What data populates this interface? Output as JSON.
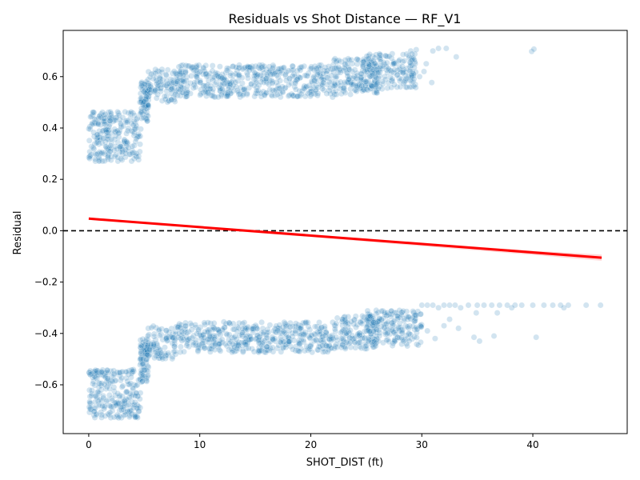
{
  "chart_data": {
    "type": "scatter",
    "title": "Residuals vs Shot Distance — RF_V1",
    "xlabel": "SHOT_DIST (ft)",
    "ylabel": "Residual",
    "xlim": [
      -2.3,
      48.5
    ],
    "ylim": [
      -0.79,
      0.78
    ],
    "xticks": [
      0,
      10,
      20,
      30,
      40
    ],
    "yticks": [
      -0.6,
      -0.4,
      -0.2,
      0.0,
      0.2,
      0.4,
      0.6
    ],
    "xtick_labels": [
      "0",
      "10",
      "20",
      "30",
      "40"
    ],
    "ytick_labels": [
      "−0.6",
      "−0.4",
      "−0.2",
      "0.0",
      "0.2",
      "0.4",
      "0.6"
    ],
    "grid": false,
    "colors": {
      "points": "#1f77b4",
      "trend": "#ff0000",
      "band": "#ff0000",
      "zero_line": "#000000"
    },
    "point_alpha": 0.2,
    "reference_line": {
      "y": 0.0,
      "style": "dashed"
    },
    "trend_line": {
      "x": [
        0,
        46.2
      ],
      "y": [
        0.047,
        -0.105
      ],
      "ci_band": {
        "x": [
          0,
          10,
          20,
          30,
          40,
          46.2
        ],
        "lower": [
          0.042,
          0.009,
          -0.025,
          -0.06,
          -0.094,
          -0.117
        ],
        "upper": [
          0.052,
          0.017,
          -0.015,
          -0.046,
          -0.078,
          -0.093
        ]
      }
    },
    "series": [
      {
        "clusters": [
          {
            "x": [
              0,
              4.7
            ],
            "y": [
              0.27,
              0.465
            ]
          },
          {
            "x": [
              4.6,
              5.4
            ],
            "y": [
              0.42,
              0.58
            ]
          },
          {
            "x": [
              5.2,
              8
            ],
            "y": [
              0.5,
              0.63
            ]
          },
          {
            "x": [
              8,
              22
            ],
            "y": [
              0.52,
              0.645
            ]
          },
          {
            "x": [
              22,
              26
            ],
            "y": [
              0.53,
              0.67
            ]
          },
          {
            "x": [
              24.5,
              29.5
            ],
            "y": [
              0.55,
              0.69
            ]
          },
          {
            "x": [
              0,
              4.7
            ],
            "y": [
              -0.73,
              -0.54
            ]
          },
          {
            "x": [
              4.6,
              5.4
            ],
            "y": [
              -0.6,
              -0.42
            ]
          },
          {
            "x": [
              5.2,
              8
            ],
            "y": [
              -0.5,
              -0.37
            ]
          },
          {
            "x": [
              8,
              22
            ],
            "y": [
              -0.475,
              -0.355
            ]
          },
          {
            "x": [
              22,
              26
            ],
            "y": [
              -0.46,
              -0.33
            ]
          },
          {
            "x": [
              25,
              30
            ],
            "y": [
              -0.45,
              -0.31
            ]
          }
        ],
        "outliers": [
          {
            "x": 29,
            "y": 0.7
          },
          {
            "x": 29.5,
            "y": 0.705
          },
          {
            "x": 30.4,
            "y": 0.65
          },
          {
            "x": 30.9,
            "y": 0.577
          },
          {
            "x": 31.0,
            "y": 0.7
          },
          {
            "x": 31.5,
            "y": 0.71
          },
          {
            "x": 32.2,
            "y": 0.71
          },
          {
            "x": 33.1,
            "y": 0.677
          },
          {
            "x": 39.9,
            "y": 0.698
          },
          {
            "x": 40.1,
            "y": 0.707
          },
          {
            "x": 30.2,
            "y": 0.62
          },
          {
            "x": 29.8,
            "y": 0.6
          },
          {
            "x": 30,
            "y": -0.29
          },
          {
            "x": 30.5,
            "y": -0.29
          },
          {
            "x": 31,
            "y": -0.29
          },
          {
            "x": 31.5,
            "y": -0.3
          },
          {
            "x": 32,
            "y": -0.29
          },
          {
            "x": 32.5,
            "y": -0.29
          },
          {
            "x": 33,
            "y": -0.29
          },
          {
            "x": 33.5,
            "y": -0.3
          },
          {
            "x": 34.2,
            "y": -0.29
          },
          {
            "x": 35,
            "y": -0.29
          },
          {
            "x": 35.6,
            "y": -0.29
          },
          {
            "x": 36.3,
            "y": -0.29
          },
          {
            "x": 37,
            "y": -0.29
          },
          {
            "x": 37.7,
            "y": -0.29
          },
          {
            "x": 38.4,
            "y": -0.29
          },
          {
            "x": 39,
            "y": -0.29
          },
          {
            "x": 40,
            "y": -0.29
          },
          {
            "x": 41,
            "y": -0.29
          },
          {
            "x": 41.8,
            "y": -0.29
          },
          {
            "x": 42.5,
            "y": -0.29
          },
          {
            "x": 43.2,
            "y": -0.29
          },
          {
            "x": 44.8,
            "y": -0.29
          },
          {
            "x": 46.1,
            "y": -0.29
          },
          {
            "x": 42.8,
            "y": -0.3
          },
          {
            "x": 32.5,
            "y": -0.345
          },
          {
            "x": 32.0,
            "y": -0.37
          },
          {
            "x": 33.3,
            "y": -0.38
          },
          {
            "x": 30.5,
            "y": -0.39
          },
          {
            "x": 31.2,
            "y": -0.42
          },
          {
            "x": 34.7,
            "y": -0.415
          },
          {
            "x": 35.2,
            "y": -0.43
          },
          {
            "x": 36.5,
            "y": -0.41
          },
          {
            "x": 40.3,
            "y": -0.415
          },
          {
            "x": 36.8,
            "y": -0.32
          },
          {
            "x": 38.1,
            "y": -0.3
          },
          {
            "x": 34.9,
            "y": -0.32
          }
        ]
      }
    ]
  }
}
